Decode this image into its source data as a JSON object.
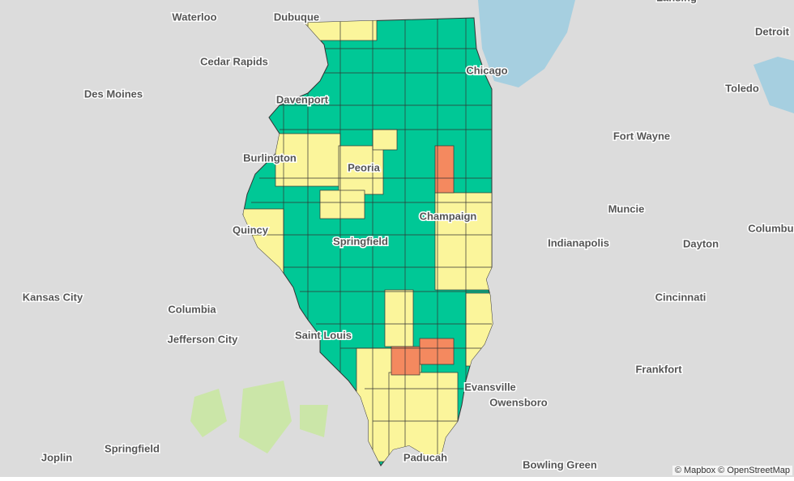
{
  "labels": [
    "Waterloo",
    "Dubuque",
    "Lansing",
    "Detroit",
    "Cedar Rapids",
    "Chicago",
    "Toledo",
    "Des Moines",
    "Davenport",
    "Fort Wayne",
    "Burlington",
    "Peoria",
    "Champaign",
    "Muncie",
    "Columbus",
    "Quincy",
    "Indianapolis",
    "Dayton",
    "Springfield",
    "Kansas City",
    "Cincinnati",
    "Columbia",
    "Jefferson City",
    "Saint Louis",
    "Frankfort",
    "Evansville",
    "Owensboro",
    "Springfield",
    "Joplin",
    "Paducah",
    "Bowling Green"
  ],
  "attribution": "© Mapbox © OpenStreetMap"
}
